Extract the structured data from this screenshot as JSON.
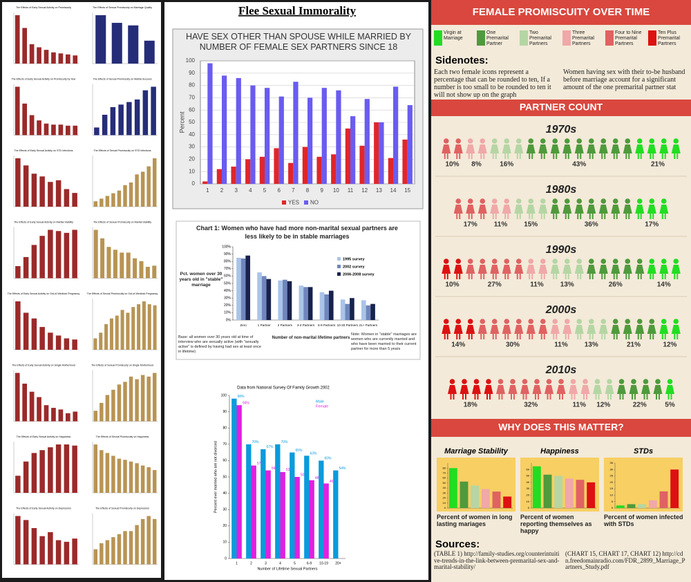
{
  "left_panel": {
    "charts": [
      {
        "title": "The Effects of Early Sexual Activity on Promiscuity",
        "color": "#9b2a2a",
        "values": [
          95,
          70,
          38,
          32,
          27,
          22,
          20,
          18,
          16
        ]
      },
      {
        "title": "The Effects of Sexual Promiscuity on Marriage Quality",
        "color": "#262d78",
        "values": [
          95,
          80,
          75,
          45
        ]
      },
      {
        "title": "The Effects of Early Sexual Activity on Promiscuity by Year",
        "color": "#9b2a2a",
        "values": [
          92,
          60,
          38,
          28,
          22,
          20,
          20,
          18,
          18
        ]
      },
      {
        "title": "The Effects of Sexual Promiscuity on Marital Success",
        "color": "#262d78",
        "values": [
          15,
          40,
          55,
          60,
          65,
          70,
          88,
          95
        ]
      },
      {
        "title": "The Effects of Early Sexual Activity on STD Infections",
        "color": "#9b2a2a",
        "values": [
          88,
          75,
          60,
          55,
          45,
          48,
          32,
          25
        ]
      },
      {
        "title": "The Effects of Sexual Promiscuity on STD Infections",
        "color": "#b89454",
        "values": [
          10,
          15,
          20,
          25,
          30,
          40,
          45,
          60,
          65,
          75,
          90
        ]
      },
      {
        "title": "The Effects of Early Sexual Activity on Marital Stability",
        "color": "#9b2a2a",
        "values": [
          20,
          35,
          55,
          70,
          80,
          78,
          75,
          80
        ]
      },
      {
        "title": "The Effects of Sexual Promiscuity on Marital Stability",
        "color": "#b89454",
        "values": [
          85,
          70,
          55,
          50,
          45,
          45,
          35,
          30,
          20,
          22
        ]
      },
      {
        "title": "The Effects of Early Sexual Activity on Out-of-Wedlock Pregnancy",
        "color": "#9b2a2a",
        "values": [
          85,
          65,
          55,
          40,
          30,
          25,
          20,
          18
        ]
      },
      {
        "title": "The Effects of Sexual Promiscuity on Out-of-Wedlock Pregnancy",
        "color": "#b89454",
        "values": [
          20,
          30,
          45,
          55,
          60,
          70,
          65,
          75,
          80,
          85,
          80,
          78
        ]
      },
      {
        "title": "The Effects of Early Sexual Activity on Single Motherhood",
        "color": "#9b2a2a",
        "values": [
          90,
          70,
          55,
          45,
          30,
          25,
          22,
          15,
          18
        ]
      },
      {
        "title": "The Effects of Sexual Promiscuity on Single Motherhood",
        "color": "#b89454",
        "values": [
          20,
          35,
          50,
          60,
          70,
          75,
          85,
          80,
          88,
          85,
          92
        ]
      },
      {
        "title": "The Effects of Early Sexual Activity on Happiness",
        "color": "#9b2a2a",
        "values": [
          30,
          55,
          70,
          75,
          80,
          85,
          85,
          83
        ]
      },
      {
        "title": "The Effects of Sexual Promiscuity on Happiness",
        "color": "#b89454",
        "values": [
          85,
          75,
          70,
          65,
          60,
          58,
          55,
          52,
          48,
          45,
          40
        ]
      },
      {
        "title": "The Effects of Early Sexual Activity on Depression",
        "color": "#9b2a2a",
        "values": [
          60,
          55,
          45,
          35,
          40,
          30,
          28,
          32
        ]
      },
      {
        "title": "The Effects of Sexual Promiscuity on Depression",
        "color": "#b89454",
        "values": [
          25,
          35,
          40,
          45,
          50,
          55,
          55,
          65,
          75,
          80,
          75
        ]
      }
    ]
  },
  "middle_panel": {
    "title": "Flee Sexual Immorality",
    "chart_1": {
      "type": "bar",
      "title": "HAVE SEX OTHER THAN SPOUSE WHILE MARRIED BY NUMBER OF FEMALE SEX PARTNERS SINCE 18",
      "y_label": "Percent",
      "categories": [
        "1",
        "2",
        "3",
        "4",
        "5",
        "6",
        "7",
        "8",
        "9",
        "10",
        "11",
        "12",
        "13",
        "14",
        "15"
      ],
      "series": [
        {
          "name": "YES",
          "color": "#e0262b",
          "values": [
            2,
            12,
            14,
            20,
            22,
            29,
            17,
            30,
            22,
            24,
            45,
            31,
            50,
            21,
            36
          ]
        },
        {
          "name": "NO",
          "color": "#6a5cf0",
          "values": [
            98,
            88,
            86,
            80,
            78,
            71,
            83,
            70,
            78,
            76,
            55,
            69,
            50,
            79,
            64
          ]
        }
      ],
      "ylim": [
        0,
        100
      ],
      "yticks": [
        0,
        10,
        20,
        30,
        40,
        50,
        60,
        70,
        80,
        90,
        100
      ],
      "grid": true
    },
    "chart_2": {
      "type": "bar",
      "title": "Chart 1: Women who have had more non-marital sexual partners are less likely to be in stable marriages",
      "y_label": "Pct. women over 30 years old in \"stable\" marriage",
      "x_label": "Number of non-marital lifetime partners",
      "categories": [
        "Zero",
        "1 Partner",
        "2 Partners",
        "3-4 Partners",
        "5-9 Partners",
        "10-20 Partners",
        "21+ Partners"
      ],
      "series": [
        {
          "name": "1995 survey",
          "color": "#aac4e8",
          "values": [
            85,
            65,
            54,
            47,
            38,
            28,
            27
          ]
        },
        {
          "name": "2002 survey",
          "color": "#6f86bd",
          "values": [
            84,
            60,
            55,
            45,
            35,
            22,
            20
          ]
        },
        {
          "name": "2006-2008 survey",
          "color": "#18224d",
          "values": [
            88,
            56,
            53,
            45,
            40,
            30,
            22
          ]
        }
      ],
      "ylim": [
        0,
        100
      ],
      "yticks": [
        {
          "value": 0,
          "label": "0%"
        },
        {
          "value": 10,
          "label": "10%"
        },
        {
          "value": 20,
          "label": "20%"
        },
        {
          "value": 30,
          "label": "30%"
        },
        {
          "value": 40,
          "label": "40%"
        },
        {
          "value": 50,
          "label": "50%"
        },
        {
          "value": 60,
          "label": "60%"
        },
        {
          "value": 70,
          "label": "70%"
        },
        {
          "value": 80,
          "label": "80%"
        },
        {
          "value": 90,
          "label": "90%"
        },
        {
          "value": 100,
          "label": "100%"
        }
      ],
      "grid": false,
      "notes": [
        "Base: all women over 30 years old at time of interview who are sexually active (with \"sexually active\" is defined by having had sex at least once in lifetime)",
        "Note: Women in \"stable\" marriages are women who are currently married and who have been married to their current partner for more than 5 years"
      ]
    },
    "chart_3": {
      "type": "bar",
      "title": "Data from National Survey Of Family Growth 2002",
      "y_label": "Percent ever married who are not divorced",
      "x_label": "Number of Lifetime Sexual Partners",
      "categories": [
        "1",
        "2",
        "3",
        "4",
        "5",
        "6-9",
        "10-19",
        "20+"
      ],
      "series": [
        {
          "name": "Male",
          "color": "#0a9bdc",
          "values": [
            98,
            70,
            67,
            70,
            65,
            63,
            60,
            54
          ],
          "value_labels": [
            "98%",
            "70%",
            "67%",
            "70%",
            "65%",
            "63%",
            "60%",
            "54%"
          ]
        },
        {
          "name": "Female",
          "color": "#e020e0",
          "values": [
            94,
            57,
            54,
            53,
            50,
            48,
            46,
            null
          ],
          "value_labels": [
            "94%",
            "57%",
            "54%",
            "53%",
            "50%",
            "48%",
            "46%",
            null
          ]
        }
      ],
      "ylim": [
        0,
        100
      ],
      "yticks": [
        0,
        10,
        20,
        30,
        40,
        50,
        60,
        70,
        80,
        90,
        100
      ],
      "grid": false
    }
  },
  "right_panel": {
    "title": "FEMALE PROMISCUITY OVER TIME",
    "legend": [
      {
        "name": "Virgin at Marriage",
        "color": "#22dd22"
      },
      {
        "name": "One Premarital Partner",
        "color": "#4f9a3c"
      },
      {
        "name": "Two Premarital Partners",
        "color": "#b5d6a4"
      },
      {
        "name": "Three Premarital Partners",
        "color": "#f0a8a8"
      },
      {
        "name": "Four to Nine Premarital Partners",
        "color": "#e06262"
      },
      {
        "name": "Ten Plus Premarital Partners",
        "color": "#dd1111"
      }
    ],
    "sidenotes_title": "Sidenotes:",
    "sidenotes": [
      "Each two female icons represent a percentage that can be rounded to ten, If a number is too small to be rounded to ten it will not show up on the graph",
      "Women having sex with their to-be husband before marriage account for a significant amount of the one premarital partner stat"
    ],
    "partner_count_title": "PARTNER COUNT",
    "decades": [
      {
        "name": "1970s",
        "values": [
          21,
          43,
          16,
          8,
          10,
          null
        ],
        "value_labels": [
          "21%",
          "43%",
          "16%",
          "8%",
          "10%",
          null
        ]
      },
      {
        "name": "1980s",
        "values": [
          17,
          36,
          15,
          11,
          17,
          null
        ],
        "value_labels": [
          "17%",
          "36%",
          "15%",
          "11%",
          "17%",
          null
        ]
      },
      {
        "name": "1990s",
        "values": [
          14,
          26,
          13,
          11,
          27,
          10
        ],
        "value_labels": [
          "14%",
          "26%",
          "13%",
          "11%",
          "27%",
          "10%"
        ]
      },
      {
        "name": "2000s",
        "values": [
          12,
          21,
          13,
          11,
          30,
          14
        ],
        "value_labels": [
          "12%",
          "21%",
          "13%",
          "11%",
          "30%",
          "14%"
        ]
      },
      {
        "name": "2010s",
        "values": [
          5,
          22,
          12,
          11,
          32,
          18
        ],
        "value_labels": [
          "5%",
          "22%",
          "12%",
          "11%",
          "32%",
          "18%"
        ]
      }
    ],
    "why_title": "WHY DOES THIS MATTER?",
    "mini_charts": [
      {
        "title": "Marriage Stability",
        "caption": "Percent of women in long lasting mariages",
        "values": [
          80,
          53,
          45,
          38,
          33,
          23
        ],
        "ylim": [
          0,
          90
        ],
        "yticks": [
          0,
          10,
          20,
          30,
          40,
          50,
          60,
          70,
          80
        ]
      },
      {
        "title": "Happiness",
        "caption": "Percent of women reporting themselves as happy",
        "values": [
          65,
          52,
          50,
          46,
          44,
          40
        ],
        "ylim": [
          0,
          70
        ],
        "yticks": [
          0,
          10,
          20,
          30,
          40,
          50,
          60
        ]
      },
      {
        "title": "STDs",
        "caption": "Percent of women infected with STDs",
        "values": [
          2,
          3,
          3,
          6,
          13,
          30
        ],
        "ylim": [
          0,
          35
        ],
        "yticks": [
          0,
          5,
          10,
          15,
          20,
          25,
          30,
          35
        ]
      }
    ],
    "sources_title": "Sources:",
    "sources": [
      "(TABLE 1) http://family-studies.org/counterintuitive-trends-in-the-link-between-premarital-sex-and-marital-stability/",
      "(CHART 15, CHART 17, CHART 12) http://cdn.freedomainradio.com/FDR_2899_Marriage_Partners_Study.pdf"
    ]
  }
}
